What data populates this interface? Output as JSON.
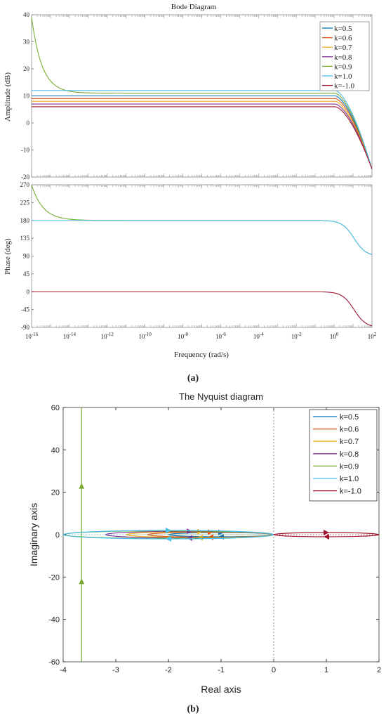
{
  "series_colors": [
    "#0072BD",
    "#D95319",
    "#EDB120",
    "#7E2F8E",
    "#77AC30",
    "#4DBEEE",
    "#A2142F"
  ],
  "legend_labels": [
    "k=0.5",
    "k=0.6",
    "k=0.7",
    "k=0.8",
    "k=0.9",
    "k=1.0",
    "k=-1.0"
  ],
  "caption_a": "(a)",
  "caption_b": "(b)",
  "chart_data": [
    {
      "type": "line",
      "title": "Bode Diagram",
      "xlabel": "Frequency  (rad/s)",
      "ylabel": "Amplitude  (dB)",
      "x_scale": "log",
      "xlim": [
        1e-16,
        100
      ],
      "ylim": [
        -20,
        40
      ],
      "yticks": [
        -20,
        -10,
        0,
        10,
        20,
        30,
        40
      ],
      "legend": "top-right",
      "series": [
        {
          "name": "k=0.5",
          "plateau": 10,
          "lowfreq_rise": false
        },
        {
          "name": "k=0.6",
          "plateau": 9,
          "lowfreq_rise": false
        },
        {
          "name": "k=0.7",
          "plateau": 8,
          "lowfreq_rise": false
        },
        {
          "name": "k=0.8",
          "plateau": 7,
          "lowfreq_rise": false
        },
        {
          "name": "k=0.9",
          "plateau": 11,
          "lowfreq_rise": true,
          "start": 39
        },
        {
          "name": "k=1.0",
          "plateau": 12,
          "lowfreq_rise": false
        },
        {
          "name": "k=-1.0",
          "plateau": 6,
          "lowfreq_rise": false
        }
      ],
      "rolloff_corner": 1,
      "end_value_at_100": -17
    },
    {
      "type": "line",
      "ylabel": "Phase  (deg)",
      "x_scale": "log",
      "xlim": [
        1e-16,
        100
      ],
      "ylim": [
        -90,
        270
      ],
      "yticks": [
        -90,
        -45,
        0,
        45,
        90,
        135,
        180,
        225,
        270
      ],
      "xticks": [
        "10^-16",
        "10^-14",
        "10^-12",
        "10^-10",
        "10^-8",
        "10^-6",
        "10^-4",
        "10^-2",
        "10^0",
        "10^2"
      ],
      "series": [
        {
          "name": "k=0.9",
          "from": 270,
          "to": 180,
          "to_hf": 90
        },
        {
          "name": "k=1.0",
          "from": 180,
          "to": 180,
          "to_hf": 90
        },
        {
          "name": "k=-1.0",
          "from": 0,
          "to": 0,
          "to_hf": -90
        }
      ]
    },
    {
      "type": "line",
      "title": "The Nyquist diagram",
      "xlabel": "Real axis",
      "ylabel": "Imaginary axis",
      "xlim": [
        -4,
        2
      ],
      "ylim": [
        -60,
        60
      ],
      "xticks": [
        -4,
        -3,
        -2,
        -1,
        0,
        1,
        2
      ],
      "yticks": [
        -60,
        -40,
        -20,
        0,
        20,
        40,
        60
      ],
      "legend": "top-right",
      "series": [
        {
          "name": "k=0.5",
          "real_min": -2.0,
          "real_max": 0,
          "imag_amp": 1.0
        },
        {
          "name": "k=0.6",
          "real_min": -2.4,
          "real_max": 0,
          "imag_amp": 1.2
        },
        {
          "name": "k=0.7",
          "real_min": -2.8,
          "real_max": 0,
          "imag_amp": 1.4
        },
        {
          "name": "k=0.8",
          "real_min": -3.2,
          "real_max": 0,
          "imag_amp": 1.6
        },
        {
          "name": "k=0.9",
          "real_min": -4.0,
          "real_max": 0,
          "imag_amp": 1.8,
          "vertical_line_x": -3.65
        },
        {
          "name": "k=1.0",
          "real_min": -4.0,
          "real_max": 0,
          "imag_amp": 2.0
        },
        {
          "name": "k=-1.0",
          "real_min": 0,
          "real_max": 2.0,
          "imag_amp": 1.0
        }
      ]
    }
  ]
}
